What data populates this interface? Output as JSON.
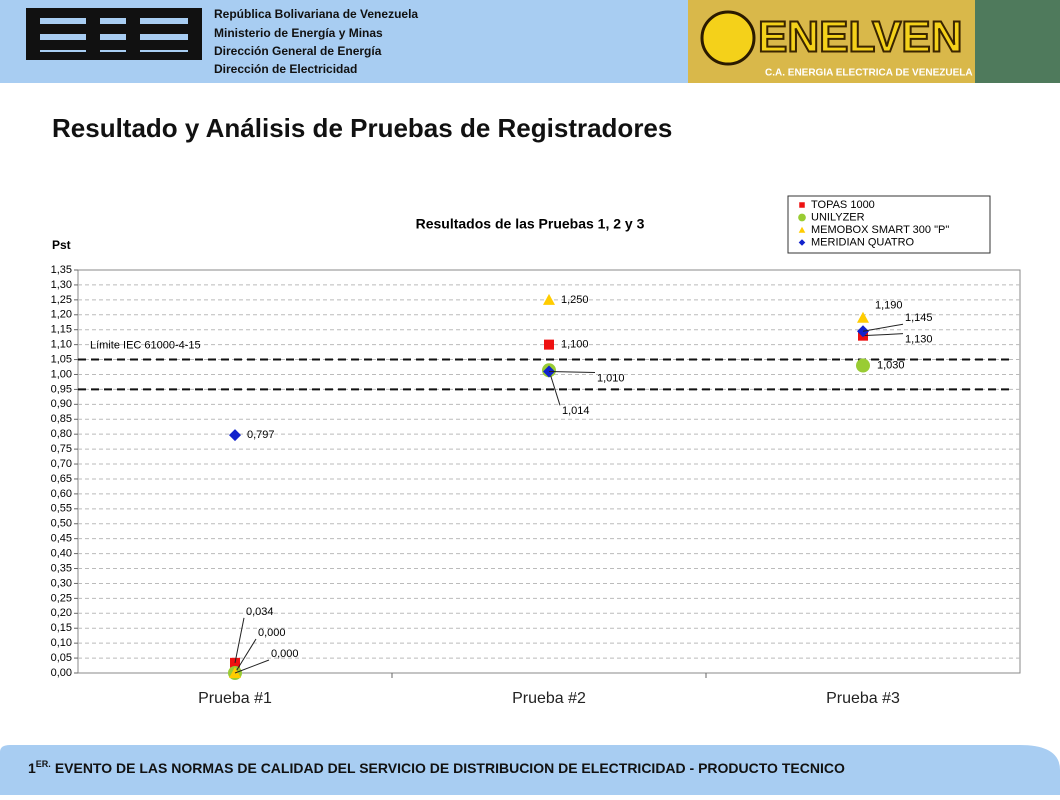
{
  "header": {
    "lines": [
      "República Bolivariana de Venezuela",
      "Ministerio de Energía y Minas",
      "Dirección General de Energía",
      "Dirección de Electricidad"
    ],
    "logo_name": "ENELVEN",
    "logo_subtitle": "C.A. ENERGIA ELECTRICA DE VENEZUELA"
  },
  "slide_title": "Resultado y Análisis de Pruebas de Registradores",
  "footer": {
    "ordinal": "1",
    "superscript": "ER.",
    "text": "EVENTO DE LAS NORMAS DE CALIDAD DEL SERVICIO DE DISTRIBUCION DE ELECTRICIDAD - PRODUCTO TECNICO"
  },
  "chart_data": {
    "type": "scatter",
    "title": "Resultados de las Pruebas 1, 2 y 3",
    "y_label": "Pst",
    "categories": [
      "Prueba #1",
      "Prueba #2",
      "Prueba #3"
    ],
    "series": [
      {
        "name": "TOPAS 1000",
        "color": "#ee1111",
        "marker": "square",
        "values": [
          0.034,
          1.1,
          1.13
        ],
        "value_labels": [
          "0,034",
          "1,100",
          "1,130"
        ]
      },
      {
        "name": "UNILYZER",
        "color": "#99cc33",
        "marker": "circle",
        "values": [
          0,
          1.014,
          1.03
        ],
        "value_labels": [
          "0,000",
          "1,014",
          "1,030"
        ]
      },
      {
        "name": "MEMOBOX SMART 300 \"P\"",
        "color": "#ffcc00",
        "marker": "triangle",
        "values": [
          0,
          1.25,
          1.19
        ],
        "value_labels": [
          "0,000",
          "1,250",
          "1,190"
        ]
      },
      {
        "name": "MERIDIAN QUATRO",
        "color": "#1122cc",
        "marker": "diamond",
        "values": [
          0.797,
          1.01,
          1.145
        ],
        "value_labels": [
          "0,797",
          "1,010",
          "1,145"
        ]
      }
    ],
    "limits": [
      1.05,
      0.95
    ],
    "limit_label": "Límite IEC 61000-4-15",
    "ylim": [
      0,
      1.35
    ],
    "yticks": [
      {
        "value": 0,
        "label": "0,00"
      },
      {
        "value": 0.05,
        "label": "0,05"
      },
      {
        "value": 0.1,
        "label": "0,10"
      },
      {
        "value": 0.15,
        "label": "0,15"
      },
      {
        "value": 0.2,
        "label": "0,20"
      },
      {
        "value": 0.25,
        "label": "0,25"
      },
      {
        "value": 0.3,
        "label": "0,30"
      },
      {
        "value": 0.35,
        "label": "0,35"
      },
      {
        "value": 0.4,
        "label": "0,40"
      },
      {
        "value": 0.45,
        "label": "0,45"
      },
      {
        "value": 0.5,
        "label": "0,50"
      },
      {
        "value": 0.55,
        "label": "0,55"
      },
      {
        "value": 0.6,
        "label": "0,60"
      },
      {
        "value": 0.65,
        "label": "0,65"
      },
      {
        "value": 0.7,
        "label": "0,70"
      },
      {
        "value": 0.75,
        "label": "0,75"
      },
      {
        "value": 0.8,
        "label": "0,80"
      },
      {
        "value": 0.85,
        "label": "0,85"
      },
      {
        "value": 0.9,
        "label": "0,90"
      },
      {
        "value": 0.95,
        "label": "0,95"
      },
      {
        "value": 1,
        "label": "1,00"
      },
      {
        "value": 1.05,
        "label": "1,05"
      },
      {
        "value": 1.1,
        "label": "1,10"
      },
      {
        "value": 1.15,
        "label": "1,15"
      },
      {
        "value": 1.2,
        "label": "1,20"
      },
      {
        "value": 1.25,
        "label": "1,25"
      },
      {
        "value": 1.3,
        "label": "1,30"
      },
      {
        "value": 1.35,
        "label": "1,35"
      }
    ],
    "grid": true,
    "legend": "top-right"
  }
}
